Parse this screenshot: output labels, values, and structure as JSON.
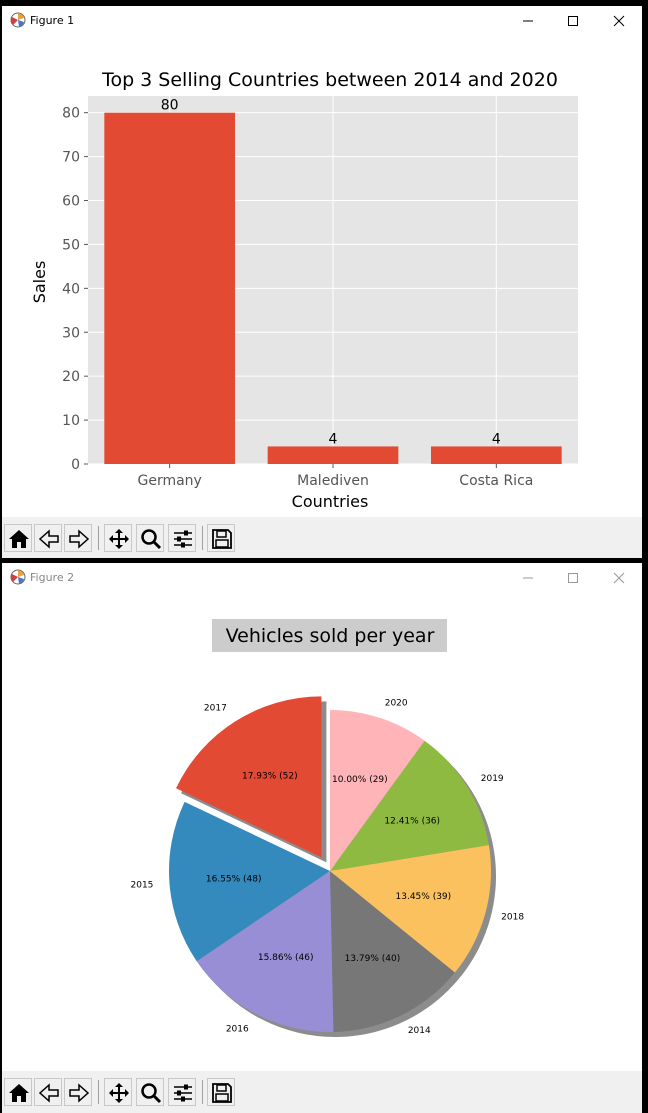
{
  "windows": [
    {
      "title": "Figure 1",
      "toolbar": {
        "buttons": [
          "home-icon",
          "back-arrow-icon",
          "forward-arrow-icon",
          "pan-icon",
          "zoom-icon",
          "configure-subplots-icon",
          "save-icon"
        ]
      }
    },
    {
      "title": "Figure 2",
      "toolbar": {
        "buttons": [
          "home-icon",
          "back-arrow-icon",
          "forward-arrow-icon",
          "pan-icon",
          "zoom-icon",
          "configure-subplots-icon",
          "save-icon"
        ]
      }
    }
  ],
  "chart_data": [
    {
      "type": "bar",
      "title": "Top 3 Selling Countries between 2014 and 2020",
      "xlabel": "Countries",
      "ylabel": "Sales",
      "categories": [
        "Germany",
        "Malediven",
        "Costa Rica"
      ],
      "values": [
        80,
        4,
        4
      ],
      "value_labels": [
        "80",
        "4",
        "4"
      ],
      "ylim": [
        0,
        83.8
      ],
      "yticks": [
        0,
        10,
        20,
        30,
        40,
        50,
        60,
        70,
        80
      ],
      "grid": true,
      "style": "ggplot",
      "colors": {
        "bar": "#E24A33",
        "axes_bg": "#E5E5E5",
        "grid": "#FFFFFF",
        "tick_text": "#555555"
      }
    },
    {
      "type": "pie",
      "title": "Vehicles sold per year",
      "shadow": true,
      "slices": [
        {
          "label": "2017",
          "value": 52,
          "pct_label": "17.93%  (52)",
          "color": "#E24A33",
          "exploded": true
        },
        {
          "label": "2015",
          "value": 48,
          "pct_label": "16.55%  (48)",
          "color": "#348ABD",
          "exploded": false
        },
        {
          "label": "2016",
          "value": 46,
          "pct_label": "15.86%  (46)",
          "color": "#988ED5",
          "exploded": false
        },
        {
          "label": "2014",
          "value": 40,
          "pct_label": "13.79%  (40)",
          "color": "#777777",
          "exploded": false
        },
        {
          "label": "2018",
          "value": 39,
          "pct_label": "13.45%  (39)",
          "color": "#FBC15E",
          "exploded": false
        },
        {
          "label": "2019",
          "value": 36,
          "pct_label": "12.41%  (36)",
          "color": "#8EBA42",
          "exploded": false
        },
        {
          "label": "2020",
          "value": 29,
          "pct_label": "10.00%  (29)",
          "color": "#FFB5B8",
          "exploded": false
        }
      ]
    }
  ]
}
